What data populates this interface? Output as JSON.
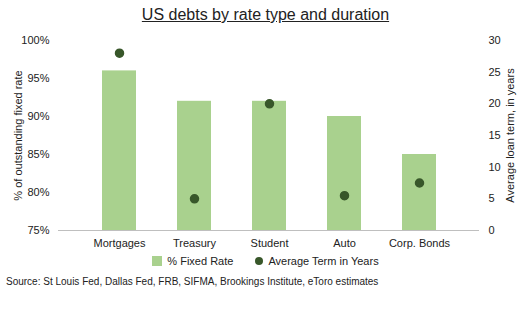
{
  "chart_data": {
    "type": "bar",
    "title": "US debts by rate type and duration",
    "categories": [
      "Mortgages",
      "Treasury",
      "Student",
      "Auto",
      "Corp. Bonds"
    ],
    "series": [
      {
        "name": "% Fixed Rate",
        "type": "bar",
        "color": "#a9d18e",
        "values": [
          96,
          92,
          92,
          90,
          85
        ]
      },
      {
        "name": "Average Term in Years",
        "type": "scatter",
        "axis": "y2",
        "marker": "circle",
        "color": "#38572a",
        "values": [
          28,
          5,
          20,
          5.5,
          7.5
        ]
      }
    ],
    "y_label": "% of outstanding fixed rate",
    "y2_label": "Average loan term, in years",
    "ylim": [
      75,
      100
    ],
    "yticks": [
      {
        "value": 75,
        "label": "75%"
      },
      {
        "value": 80,
        "label": "80%"
      },
      {
        "value": 85,
        "label": "85%"
      },
      {
        "value": 90,
        "label": "90%"
      },
      {
        "value": 95,
        "label": "95%"
      },
      {
        "value": 100,
        "label": "100%"
      }
    ],
    "y2lim": [
      0,
      30
    ],
    "y2ticks": [
      0,
      5,
      10,
      15,
      20,
      25,
      30
    ],
    "grid": false,
    "legend": "bottom",
    "source": "Source: St Louis Fed, Dallas Fed, FRB, SIFMA, Brookings Institute, eToro estimates"
  }
}
